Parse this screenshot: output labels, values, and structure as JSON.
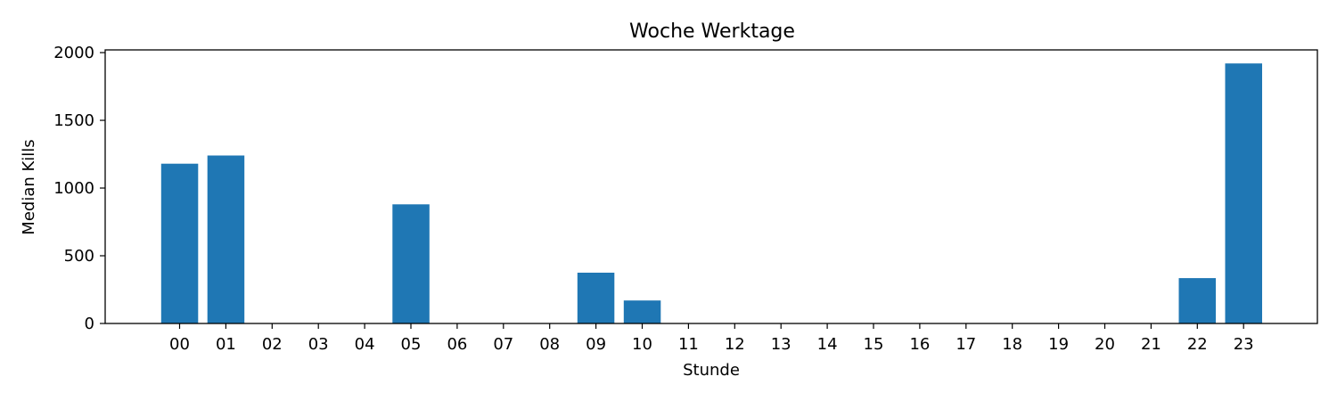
{
  "chart_data": {
    "type": "bar",
    "title": "Woche Werktage",
    "xlabel": "Stunde",
    "ylabel": "Median Kills",
    "categories": [
      "00",
      "01",
      "02",
      "03",
      "04",
      "05",
      "06",
      "07",
      "08",
      "09",
      "10",
      "11",
      "12",
      "13",
      "14",
      "15",
      "16",
      "17",
      "18",
      "19",
      "20",
      "21",
      "22",
      "23"
    ],
    "values": [
      1180,
      1240,
      0,
      0,
      0,
      880,
      0,
      0,
      0,
      375,
      170,
      0,
      0,
      0,
      0,
      0,
      0,
      0,
      0,
      0,
      0,
      0,
      335,
      1920
    ],
    "ylim": [
      0,
      2020
    ],
    "yticks": [
      0,
      500,
      1000,
      1500,
      2000
    ],
    "grid": false,
    "bar_color": "#1f77b4"
  }
}
